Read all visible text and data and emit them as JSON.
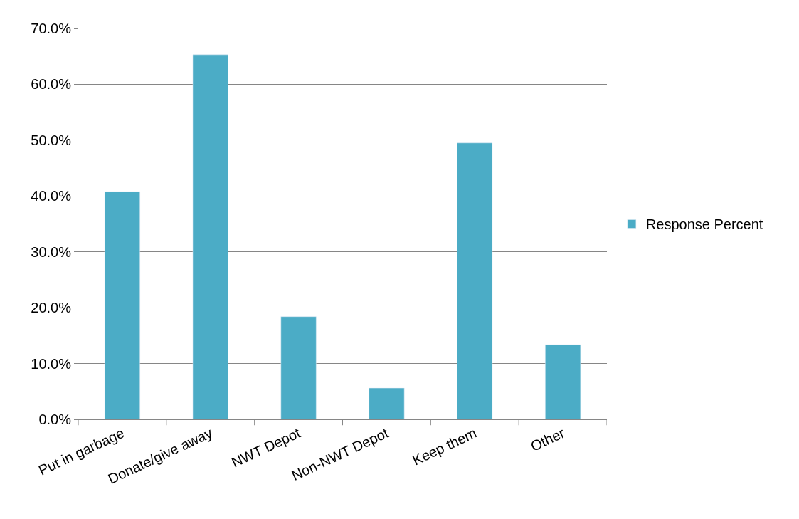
{
  "chart_data": {
    "type": "bar",
    "categories": [
      "Put in garbage",
      "Donate/give away",
      "NWT Depot",
      "Non-NWT Depot",
      "Keep them",
      "Other"
    ],
    "series": [
      {
        "name": "Response Percent",
        "color": "#4bacc6",
        "values": [
          40.8,
          65.3,
          18.4,
          5.6,
          49.5,
          13.4
        ]
      }
    ],
    "ylim": [
      0,
      70
    ],
    "yticks": [
      {
        "value": 0,
        "label": "0.0%"
      },
      {
        "value": 10,
        "label": "10.0%"
      },
      {
        "value": 20,
        "label": "20.0%"
      },
      {
        "value": 30,
        "label": "30.0%"
      },
      {
        "value": 40,
        "label": "40.0%"
      },
      {
        "value": 50,
        "label": "50.0%"
      },
      {
        "value": 60,
        "label": "60.0%"
      },
      {
        "value": 70,
        "label": "70.0%"
      }
    ],
    "grid": "y",
    "legend": "right"
  }
}
